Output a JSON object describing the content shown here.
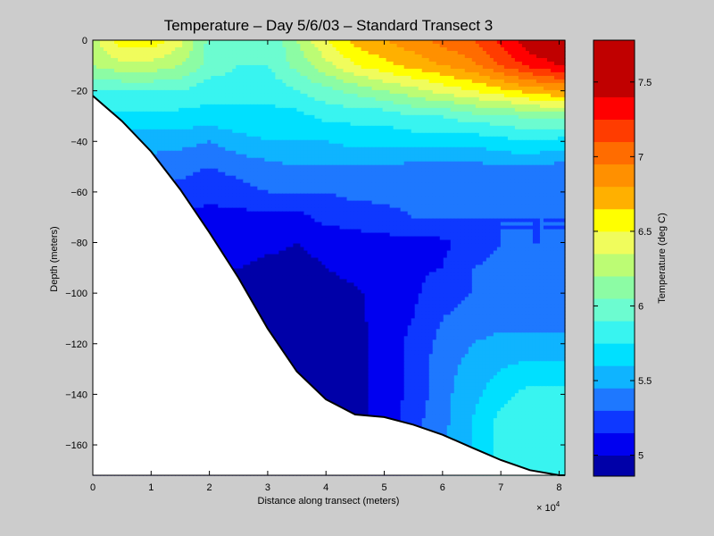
{
  "chart_data": {
    "type": "heatmap",
    "subtype": "filled-contour",
    "title": "Temperature – Day 5/6/03 – Standard Transect 3",
    "xlabel": "Distance along transect (meters)",
    "ylabel": "Depth (meters)",
    "x_multiplier_label": "× 10",
    "x_multiplier_exponent": "4",
    "colorbar_label": "Temperature (deg C)",
    "xlim": [
      0,
      81000
    ],
    "ylim": [
      -172,
      0
    ],
    "xticks": [
      0,
      10000,
      20000,
      30000,
      40000,
      50000,
      60000,
      70000,
      80000
    ],
    "xtick_labels": [
      "0",
      "1",
      "2",
      "3",
      "4",
      "5",
      "6",
      "7",
      "8"
    ],
    "yticks": [
      0,
      -20,
      -40,
      -60,
      -80,
      -100,
      -120,
      -140,
      -160
    ],
    "ytick_labels": [
      "0",
      "−20",
      "−40",
      "−60",
      "−80",
      "−100",
      "−120",
      "−140",
      "−160"
    ],
    "colorbar": {
      "range": [
        4.86,
        7.78
      ],
      "ticks": [
        5,
        5.5,
        6,
        6.5,
        7,
        7.5
      ],
      "tick_labels": [
        "5",
        "5.5",
        "6",
        "6.5",
        "7",
        "7.5"
      ],
      "levels": [
        {
          "min": 4.86,
          "max": 5.0,
          "color": "#0000a8"
        },
        {
          "min": 5.0,
          "max": 5.15,
          "color": "#0000f0"
        },
        {
          "min": 5.15,
          "max": 5.3,
          "color": "#0e38ff"
        },
        {
          "min": 5.3,
          "max": 5.45,
          "color": "#1e78ff"
        },
        {
          "min": 5.45,
          "max": 5.6,
          "color": "#0fb4ff"
        },
        {
          "min": 5.6,
          "max": 5.75,
          "color": "#00e0ff"
        },
        {
          "min": 5.75,
          "max": 5.9,
          "color": "#38f4f0"
        },
        {
          "min": 5.9,
          "max": 6.05,
          "color": "#6cfcd0"
        },
        {
          "min": 6.05,
          "max": 6.2,
          "color": "#8cfca4"
        },
        {
          "min": 6.2,
          "max": 6.35,
          "color": "#bcfc74"
        },
        {
          "min": 6.35,
          "max": 6.5,
          "color": "#f0fc5c"
        },
        {
          "min": 6.5,
          "max": 6.65,
          "color": "#ffff00"
        },
        {
          "min": 6.65,
          "max": 6.8,
          "color": "#ffb000"
        },
        {
          "min": 6.8,
          "max": 6.95,
          "color": "#ff9000"
        },
        {
          "min": 6.95,
          "max": 7.1,
          "color": "#ff6c00"
        },
        {
          "min": 7.1,
          "max": 7.25,
          "color": "#ff3c00"
        },
        {
          "min": 7.25,
          "max": 7.4,
          "color": "#ff0000"
        },
        {
          "min": 7.4,
          "max": 7.78,
          "color": "#c00000"
        }
      ]
    },
    "seafloor": {
      "x": [
        0,
        5000,
        10000,
        15000,
        20000,
        25000,
        30000,
        35000,
        40000,
        45000,
        50000,
        55000,
        60000,
        65000,
        70000,
        75000,
        80000,
        81000
      ],
      "depth": [
        -22,
        -32,
        -44,
        -59,
        -76,
        -94,
        -114,
        -131,
        -142,
        -148,
        -149,
        -152,
        -156,
        -161,
        -166,
        -170,
        -172,
        -172
      ]
    },
    "field": {
      "x": [
        0,
        5000,
        10000,
        15000,
        20000,
        25000,
        30000,
        35000,
        40000,
        45000,
        50000,
        55000,
        60000,
        65000,
        70000,
        75000,
        80000
      ],
      "depth": [
        0,
        -10,
        -20,
        -30,
        -40,
        -50,
        -60,
        -70,
        -80,
        -90,
        -100,
        -110,
        -120,
        -130,
        -140,
        -150,
        -160,
        -170
      ],
      "temperature": [
        [
          6.3,
          6.6,
          6.6,
          6.4,
          6.0,
          5.9,
          5.9,
          6.2,
          6.5,
          6.7,
          6.8,
          6.9,
          7.0,
          7.1,
          7.3,
          7.5,
          7.6
        ],
        [
          6.2,
          6.3,
          6.3,
          6.2,
          6.0,
          5.9,
          5.9,
          6.1,
          6.3,
          6.5,
          6.6,
          6.7,
          6.8,
          6.9,
          7.1,
          7.3,
          7.4
        ],
        [
          5.9,
          5.9,
          5.9,
          5.9,
          5.8,
          5.8,
          5.8,
          5.9,
          6.0,
          6.1,
          6.2,
          6.3,
          6.4,
          6.5,
          6.6,
          6.7,
          6.8
        ],
        [
          5.7,
          5.7,
          5.7,
          5.7,
          5.7,
          5.7,
          5.7,
          5.7,
          5.8,
          5.8,
          5.8,
          5.9,
          5.9,
          6.0,
          6.0,
          6.1,
          6.1
        ],
        [
          5.6,
          5.55,
          5.5,
          5.5,
          5.45,
          5.55,
          5.6,
          5.6,
          5.6,
          5.65,
          5.65,
          5.65,
          5.65,
          5.65,
          5.7,
          5.75,
          5.7
        ],
        [
          5.5,
          5.45,
          5.4,
          5.35,
          5.3,
          5.35,
          5.4,
          5.45,
          5.45,
          5.45,
          5.45,
          5.4,
          5.4,
          5.4,
          5.45,
          5.45,
          5.4
        ],
        [
          5.4,
          5.35,
          5.3,
          5.25,
          5.2,
          5.25,
          5.3,
          5.3,
          5.3,
          5.35,
          5.35,
          5.35,
          5.35,
          5.35,
          5.35,
          5.35,
          5.35
        ],
        [
          5.3,
          5.2,
          5.1,
          5.1,
          5.1,
          5.1,
          5.1,
          5.1,
          5.2,
          5.2,
          5.25,
          5.3,
          5.3,
          5.3,
          5.3,
          5.3,
          5.3
        ],
        [
          5.1,
          5.1,
          5.0,
          5.05,
          5.1,
          5.1,
          5.05,
          5.0,
          5.05,
          5.1,
          5.1,
          5.1,
          5.12,
          5.2,
          5.3,
          5.3,
          5.3
        ],
        [
          5.05,
          5.05,
          5.0,
          5.0,
          5.0,
          5.0,
          4.95,
          4.95,
          5.0,
          5.05,
          5.1,
          5.12,
          5.15,
          5.3,
          5.35,
          5.35,
          5.35
        ],
        [
          5.0,
          5.0,
          5.0,
          5.0,
          5.0,
          4.95,
          4.95,
          4.93,
          4.93,
          4.98,
          5.05,
          5.12,
          5.25,
          5.3,
          5.35,
          5.35,
          5.35
        ],
        [
          5.0,
          5.0,
          5.0,
          4.95,
          4.95,
          4.95,
          4.93,
          4.93,
          4.93,
          4.97,
          5.05,
          5.15,
          5.3,
          5.35,
          5.4,
          5.4,
          5.4
        ],
        [
          5.0,
          5.0,
          4.95,
          4.95,
          4.95,
          4.93,
          4.93,
          4.93,
          4.93,
          4.96,
          5.05,
          5.2,
          5.35,
          5.45,
          5.5,
          5.5,
          5.5
        ],
        [
          4.95,
          4.95,
          4.95,
          4.93,
          4.93,
          4.93,
          4.93,
          4.93,
          4.93,
          4.96,
          5.05,
          5.2,
          5.4,
          5.5,
          5.6,
          5.65,
          5.65
        ],
        [
          4.95,
          4.95,
          4.93,
          4.93,
          4.93,
          4.93,
          4.93,
          4.93,
          4.93,
          4.96,
          5.05,
          5.2,
          5.4,
          5.55,
          5.7,
          5.8,
          5.8
        ],
        [
          4.95,
          4.93,
          4.93,
          4.93,
          4.93,
          4.93,
          4.93,
          4.93,
          4.93,
          4.96,
          5.05,
          5.25,
          5.4,
          5.6,
          5.8,
          5.85,
          5.85
        ],
        [
          4.93,
          4.93,
          4.93,
          4.93,
          4.93,
          4.93,
          4.93,
          4.93,
          4.93,
          4.96,
          5.05,
          5.25,
          5.45,
          5.6,
          5.8,
          5.85,
          5.85
        ],
        [
          4.93,
          4.93,
          4.93,
          4.93,
          4.93,
          4.93,
          4.93,
          4.93,
          4.93,
          4.96,
          5.05,
          5.25,
          5.45,
          5.6,
          5.8,
          5.85,
          5.85
        ]
      ]
    }
  }
}
